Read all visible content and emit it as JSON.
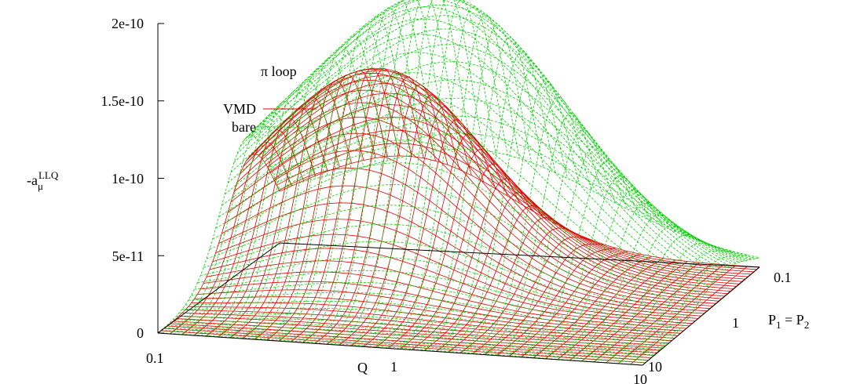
{
  "chart_data": {
    "type": "surface",
    "title": "π loop",
    "zlabel": {
      "base": "-a",
      "sub": "μ",
      "sup": "LLQ"
    },
    "xlabel": "Q",
    "ylabel": {
      "p1": "P",
      "p1_sub": "1",
      "eq": " = ",
      "p2": "P",
      "p2_sub": "2"
    },
    "x_scale": "log",
    "y_scale": "log",
    "xlim": [
      0.1,
      10
    ],
    "ylim": [
      0.1,
      10
    ],
    "zlim": [
      0,
      2e-10
    ],
    "z_ticks": [
      {
        "value": 0,
        "label": "0"
      },
      {
        "value": 5e-11,
        "label": "5e-11"
      },
      {
        "value": 1e-10,
        "label": "1e-10"
      },
      {
        "value": 1.5e-10,
        "label": "1.5e-10"
      },
      {
        "value": 2e-10,
        "label": "2e-10"
      }
    ],
    "x_ticks": [
      {
        "value": 0.1,
        "label": "0.1"
      },
      {
        "value": 1,
        "label": "1"
      },
      {
        "value": 10,
        "label": "10"
      }
    ],
    "y_ticks": [
      {
        "value": 0.1,
        "label": "0.1"
      },
      {
        "value": 1,
        "label": "1"
      },
      {
        "value": 10,
        "label": "10"
      }
    ],
    "legend_position": "top-left",
    "series": [
      {
        "name": "VMD",
        "color": "#e00000",
        "style": "solid",
        "peak_z": 1.3e-10,
        "peak_logQ": -0.45,
        "peak_logP": -0.5,
        "spread_logQ": 0.42,
        "spread_logP": 0.4
      },
      {
        "name": "bare",
        "color": "#00d000",
        "style": "dashed",
        "peak_z": 1.85e-10,
        "peak_logQ": -0.2,
        "peak_logP": -0.4,
        "spread_logQ": 0.55,
        "spread_logP": 0.42
      }
    ]
  }
}
